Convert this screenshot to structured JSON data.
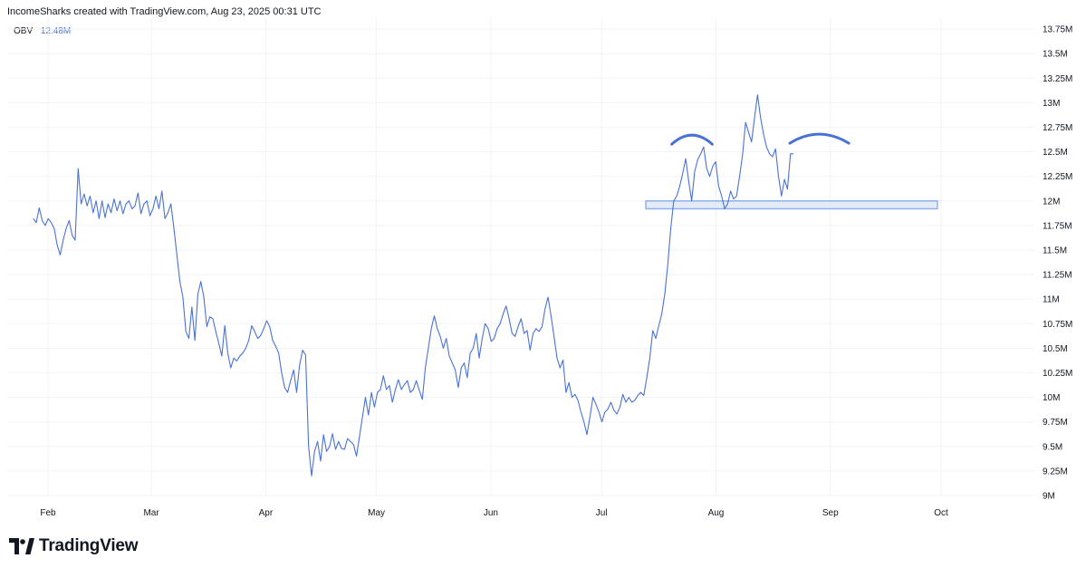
{
  "header": {
    "attribution": "IncomeSharks created with TradingView.com, Aug 23, 2025 00:31 UTC"
  },
  "legend": {
    "indicator": "OBV",
    "value": "12.48M"
  },
  "brand": {
    "name": "TradingView"
  },
  "colors": {
    "line": "#4a72d6",
    "grid": "#f0f3fa",
    "annotation": "#4a72d6",
    "zone_fill": "#dbe6f7",
    "zone_stroke": "#8fb0ea"
  },
  "chart_data": {
    "type": "line",
    "indicator": "OBV",
    "ylim": [
      9.0,
      13.75
    ],
    "y_ticks": [
      "13.75M",
      "13.5M",
      "13.25M",
      "13M",
      "12.75M",
      "12.5M",
      "12.25M",
      "12M",
      "11.75M",
      "11.5M",
      "11.25M",
      "11M",
      "10.75M",
      "10.5M",
      "10.25M",
      "10M",
      "9.75M",
      "9.5M",
      "9.25M",
      "9M"
    ],
    "x_ticks": [
      "Feb",
      "Mar",
      "Apr",
      "May",
      "Jun",
      "Jul",
      "Aug",
      "Sep",
      "Oct"
    ],
    "x_tick_dates": [
      "2025-02-01",
      "2025-03-01",
      "2025-04-01",
      "2025-05-01",
      "2025-06-01",
      "2025-07-01",
      "2025-08-01",
      "2025-09-01",
      "2025-10-01"
    ],
    "grid": true,
    "series": [
      {
        "values": [
          11.82,
          11.78,
          11.93,
          11.8,
          11.75,
          11.82,
          11.78,
          11.72,
          11.55,
          11.45,
          11.6,
          11.72,
          11.8,
          11.65,
          11.6,
          12.33,
          11.97,
          12.07,
          11.95,
          12.05,
          11.88,
          12.0,
          11.82,
          12.0,
          11.83,
          11.97,
          11.88,
          12.02,
          11.9,
          12.0,
          11.87,
          11.97,
          12.0,
          11.92,
          11.95,
          12.08,
          11.87,
          11.97,
          12.0,
          11.85,
          11.92,
          12.05,
          11.92,
          12.1,
          11.82,
          11.88,
          11.97,
          11.72,
          11.45,
          11.18,
          11.02,
          10.67,
          10.6,
          10.92,
          10.58,
          11.05,
          11.18,
          11.02,
          10.72,
          10.82,
          10.8,
          10.67,
          10.55,
          10.42,
          10.73,
          10.45,
          10.3,
          10.4,
          10.37,
          10.42,
          10.45,
          10.5,
          10.58,
          10.73,
          10.67,
          10.6,
          10.63,
          10.7,
          10.78,
          10.72,
          10.58,
          10.52,
          10.45,
          10.25,
          10.1,
          10.05,
          10.17,
          10.28,
          10.05,
          10.33,
          10.48,
          10.43,
          9.5,
          9.2,
          9.45,
          9.55,
          9.35,
          9.62,
          9.45,
          9.5,
          9.63,
          9.47,
          9.55,
          9.48,
          9.47,
          9.58,
          9.55,
          9.52,
          9.4,
          9.6,
          9.8,
          10.0,
          9.82,
          10.05,
          9.9,
          10.05,
          10.08,
          10.22,
          10.08,
          10.12,
          9.95,
          10.08,
          10.18,
          10.08,
          10.13,
          10.17,
          10.05,
          10.08,
          10.17,
          10.07,
          9.98,
          10.3,
          10.5,
          10.7,
          10.83,
          10.7,
          10.62,
          10.5,
          10.6,
          10.42,
          10.35,
          10.28,
          10.1,
          10.3,
          10.35,
          10.2,
          10.45,
          10.5,
          10.65,
          10.4,
          10.6,
          10.75,
          10.7,
          10.57,
          10.6,
          10.7,
          10.75,
          10.85,
          10.93,
          10.8,
          10.65,
          10.62,
          10.72,
          10.8,
          10.65,
          10.68,
          10.48,
          10.65,
          10.7,
          10.67,
          10.72,
          10.9,
          11.02,
          10.83,
          10.62,
          10.4,
          10.3,
          10.38,
          10.05,
          10.15,
          10.0,
          10.03,
          9.97,
          9.85,
          9.75,
          9.62,
          9.8,
          10.0,
          9.93,
          9.85,
          9.75,
          9.85,
          9.88,
          9.95,
          9.87,
          9.83,
          9.9,
          10.03,
          9.95,
          10.0,
          9.95,
          9.97,
          10.02,
          10.05,
          10.02,
          10.2,
          10.4,
          10.68,
          10.6,
          10.73,
          10.85,
          11.05,
          11.35,
          11.72,
          12.0,
          12.05,
          12.15,
          12.28,
          12.43,
          12.2,
          12.0,
          12.3,
          12.42,
          12.48,
          12.55,
          12.33,
          12.25,
          12.35,
          12.4,
          12.15,
          12.05,
          11.92,
          11.97,
          12.1,
          12.02,
          12.05,
          12.25,
          12.47,
          12.8,
          12.7,
          12.6,
          12.85,
          13.08,
          12.85,
          12.68,
          12.55,
          12.48,
          12.45,
          12.53,
          12.25,
          12.05,
          12.22,
          12.12,
          12.48,
          12.48
        ]
      }
    ],
    "x_range": [
      "2025-01-28",
      "2025-08-22"
    ],
    "annotations": {
      "support_zone": {
        "low": 11.92,
        "high": 12.0,
        "from": "2025-07-13",
        "to": "2025-09-30"
      },
      "arcs": [
        {
          "from": "2025-07-20",
          "to": "2025-07-31",
          "peak": 12.67
        },
        {
          "from": "2025-08-21",
          "to": "2025-09-06",
          "peak": 12.68
        }
      ]
    }
  }
}
